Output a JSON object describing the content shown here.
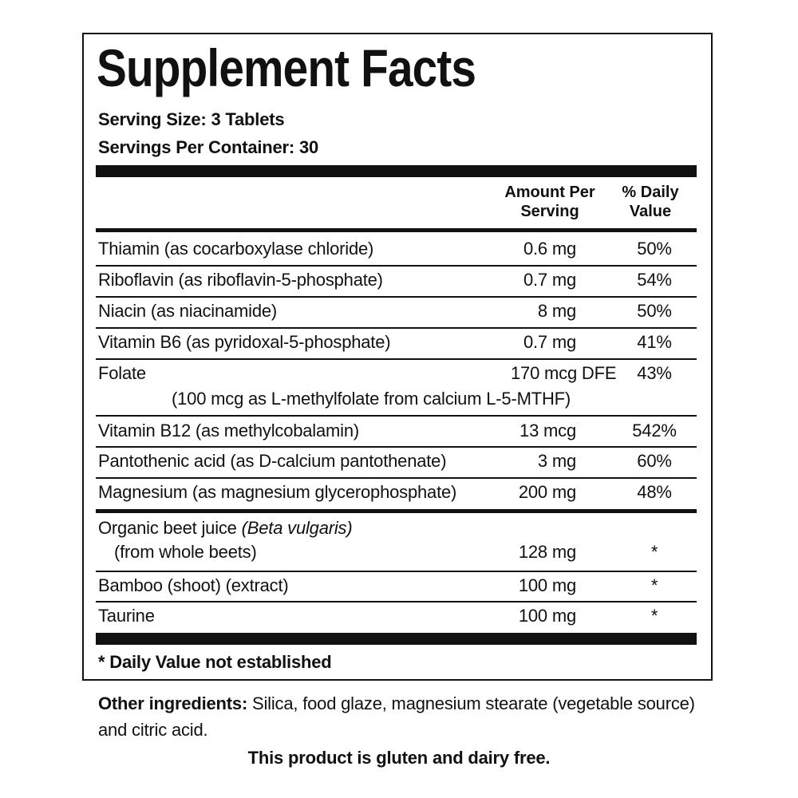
{
  "header": {
    "title": "Supplement Facts",
    "serving_size": "Serving Size: 3 Tablets",
    "servings_per_container": "Servings Per Container: 30"
  },
  "table": {
    "columns": [
      "Amount Per Serving",
      "% Daily Value"
    ],
    "rows": [
      {
        "name": "Thiamin (as cocarboxylase chloride)",
        "amount": "0.6 mg",
        "daily_value": "50%"
      },
      {
        "name": "Riboflavin (as riboflavin-5-phosphate)",
        "amount": "0.7 mg",
        "daily_value": "54%"
      },
      {
        "name": "Niacin (as niacinamide)",
        "amount": "8 mg",
        "daily_value": "50%"
      },
      {
        "name": "Vitamin B6 (as pyridoxal-5-phosphate)",
        "amount": "0.7 mg",
        "daily_value": "41%"
      },
      {
        "name": "Folate",
        "amount": "170 mcg DFE",
        "daily_value": "43%",
        "note": "(100 mcg as L-methylfolate from calcium L-5-MTHF)"
      },
      {
        "name": "Vitamin B12 (as methylcobalamin)",
        "amount": "13 mcg",
        "daily_value": "542%"
      },
      {
        "name": "Pantothenic acid (as D-calcium pantothenate)",
        "amount": "3 mg",
        "daily_value": "60%"
      },
      {
        "name": "Magnesium (as magnesium glycerophosphate)",
        "amount": "200 mg",
        "daily_value": "48%"
      },
      {
        "name": "Organic beet juice",
        "name_italic": "(Beta vulgaris)",
        "note": "(from whole beets)",
        "amount": "128 mg",
        "daily_value": "*"
      },
      {
        "name": "Bamboo (shoot) (extract)",
        "amount": "100 mg",
        "daily_value": "*"
      },
      {
        "name": "Taurine",
        "amount": "100 mg",
        "daily_value": "*"
      }
    ]
  },
  "footnote": "* Daily Value not established",
  "other_ingredients": {
    "label": "Other ingredients:",
    "text": "Silica, food glaze, magnesium stearate (vegetable source) and citric acid."
  },
  "statement": "This product is gluten and dairy free."
}
